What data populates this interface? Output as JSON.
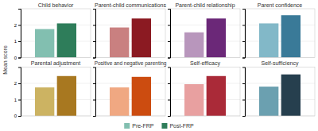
{
  "chart_data": [
    {
      "type": "bar",
      "title": "Child behavior",
      "categories": [
        null
      ],
      "series": [
        {
          "name": "Pre-FRP",
          "color": "#82bfb0",
          "values": [
            1.75
          ]
        },
        {
          "name": "Post-FRP",
          "color": "#2e7d5a",
          "values": [
            2.1
          ]
        }
      ],
      "ylim": [
        0,
        3
      ],
      "yticks": [
        0,
        1,
        2
      ],
      "grid": true,
      "tick_labels": "y",
      "ylabel": "Mean score",
      "legend": "bottom"
    },
    {
      "type": "bar",
      "title": "Parent-child communications",
      "categories": [
        null
      ],
      "series": [
        {
          "name": "Pre-FRP",
          "color": "#c98080",
          "values": [
            1.85
          ]
        },
        {
          "name": "Post-FRP",
          "color": "#8b1a22",
          "values": [
            2.4
          ]
        }
      ],
      "ylim": [
        0,
        3
      ],
      "yticks": [
        0,
        1,
        2
      ],
      "grid": true,
      "tick_labels": false
    },
    {
      "type": "bar",
      "title": "Parent-child relationship",
      "categories": [
        null
      ],
      "series": [
        {
          "name": "Pre-FRP",
          "color": "#b896bc",
          "values": [
            1.55
          ]
        },
        {
          "name": "Post-FRP",
          "color": "#6b2878",
          "values": [
            2.4
          ]
        }
      ],
      "ylim": [
        0,
        3
      ],
      "yticks": [
        0,
        1,
        2
      ],
      "grid": true,
      "tick_labels": false
    },
    {
      "type": "bar",
      "title": "Parent confidence",
      "categories": [
        null
      ],
      "series": [
        {
          "name": "Pre-FRP",
          "color": "#82b8c8",
          "values": [
            2.1
          ]
        },
        {
          "name": "Post-FRP",
          "color": "#3a7a98",
          "values": [
            2.6
          ]
        }
      ],
      "ylim": [
        0,
        3
      ],
      "yticks": [
        0,
        1,
        2
      ],
      "grid": true,
      "tick_labels": false
    },
    {
      "type": "bar",
      "title": "Parental adjustment",
      "categories": [
        null
      ],
      "series": [
        {
          "name": "Pre-FRP",
          "color": "#ccb362",
          "values": [
            1.75
          ]
        },
        {
          "name": "Post-FRP",
          "color": "#a87820",
          "values": [
            2.45
          ]
        }
      ],
      "ylim": [
        0,
        3
      ],
      "yticks": [
        0,
        1,
        2
      ],
      "grid": true,
      "tick_labels": "y"
    },
    {
      "type": "bar",
      "title": "Positive and negative parenting",
      "categories": [
        null
      ],
      "series": [
        {
          "name": "Pre-FRP",
          "color": "#f0a882",
          "values": [
            1.75
          ]
        },
        {
          "name": "Post-FRP",
          "color": "#cc4c10",
          "values": [
            2.4
          ]
        }
      ],
      "ylim": [
        0,
        3
      ],
      "yticks": [
        0,
        1,
        2
      ],
      "grid": true,
      "tick_labels": false
    },
    {
      "type": "bar",
      "title": "Self-efficacy",
      "categories": [
        null
      ],
      "series": [
        {
          "name": "Pre-FRP",
          "color": "#e8a0a0",
          "values": [
            1.95
          ]
        },
        {
          "name": "Post-FRP",
          "color": "#aa2a38",
          "values": [
            2.45
          ]
        }
      ],
      "ylim": [
        0,
        3
      ],
      "yticks": [
        0,
        1,
        2
      ],
      "grid": true,
      "tick_labels": false
    },
    {
      "type": "bar",
      "title": "Self-sufficiency",
      "categories": [
        null
      ],
      "series": [
        {
          "name": "Pre-FRP",
          "color": "#6ba0b0",
          "values": [
            1.8
          ]
        },
        {
          "name": "Post-FRP",
          "color": "#263f4e",
          "values": [
            2.55
          ]
        }
      ],
      "ylim": [
        0,
        3
      ],
      "yticks": [
        0,
        1,
        2
      ],
      "grid": true,
      "tick_labels": false
    }
  ]
}
